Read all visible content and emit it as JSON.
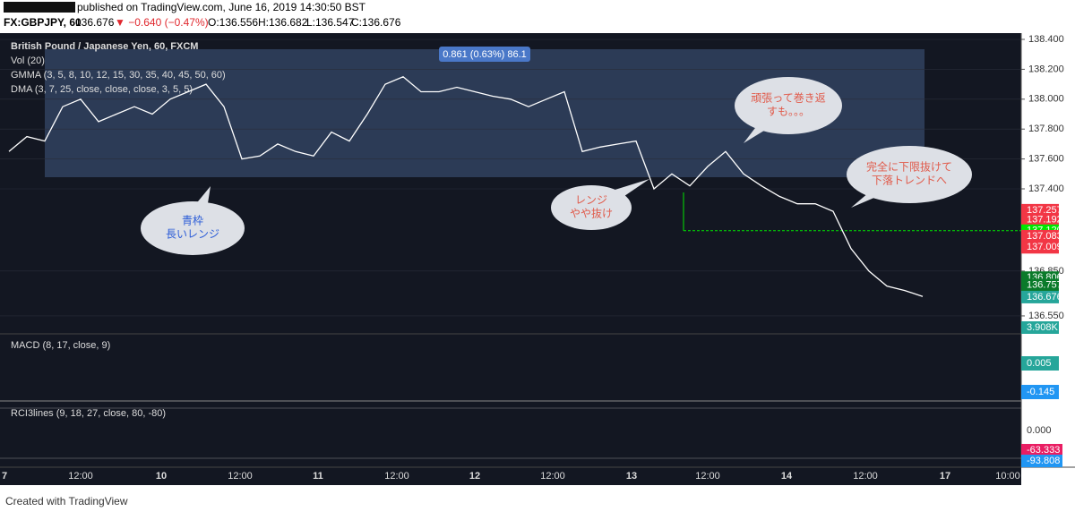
{
  "header": {
    "published": "published on TradingView.com, June 16, 2019 14:30:50 BST",
    "symbol": "FX:GBPJPY, 60",
    "last": "136.676",
    "change": "▼ −0.640 (−0.47%)",
    "open": "O:136.556",
    "high": "H:136.682",
    "low": "L:136.547",
    "close": "C:136.676"
  },
  "legend": [
    "British Pound / Japanese Yen, 60, FXCM",
    "Vol (20)",
    "GMMA (3, 5, 8, 10, 12, 15, 30, 35, 40, 45, 50, 60)",
    "DMA (3, 7, 25, close, close, close, 3, 5, 5)"
  ],
  "measure_label": "0.861 (0.63%) 86.1",
  "chart_data": {
    "type": "line",
    "color": "#ffffff",
    "categories": [
      null,
      null,
      null,
      null,
      null,
      null,
      null,
      null,
      null,
      null,
      null,
      null,
      null,
      null,
      null,
      null,
      null,
      null,
      null,
      null,
      null,
      null,
      null,
      null,
      null,
      null,
      null,
      null,
      null,
      null,
      null,
      null,
      null,
      null,
      null,
      null,
      null,
      null,
      null,
      null,
      null,
      null,
      null,
      null,
      null,
      null,
      null,
      null,
      null,
      null,
      null,
      null
    ],
    "values": [
      137.65,
      137.75,
      137.72,
      137.95,
      138.0,
      137.85,
      137.9,
      137.95,
      137.9,
      138.0,
      138.05,
      138.1,
      137.95,
      137.6,
      137.62,
      137.7,
      137.65,
      137.62,
      137.78,
      137.72,
      137.9,
      138.1,
      138.15,
      138.05,
      138.05,
      138.08,
      138.05,
      138.02,
      138.0,
      137.95,
      138.0,
      138.05,
      137.65,
      137.68,
      137.7,
      137.72,
      137.4,
      137.5,
      137.42,
      137.55,
      137.65,
      137.5,
      137.42,
      137.35,
      137.3,
      137.3,
      137.25,
      137.0,
      136.85,
      136.75,
      136.72,
      136.68
    ],
    "ylim": [
      136.43,
      138.442
    ],
    "yticks": [
      {
        "value": 138.4,
        "label": "138.400"
      },
      {
        "value": 138.2,
        "label": "138.200"
      },
      {
        "value": 138.0,
        "label": "138.000"
      },
      {
        "value": 137.8,
        "label": "137.800"
      },
      {
        "value": 137.6,
        "label": "137.600"
      },
      {
        "value": 137.4,
        "label": "137.400"
      },
      {
        "value": 136.85,
        "label": "136.850"
      },
      {
        "value": 136.55,
        "label": "136.550"
      }
    ],
    "badges": [
      {
        "value": 137.257,
        "label": "137.257",
        "color": "#f23645"
      },
      {
        "value": 137.192,
        "label": "137.192",
        "color": "#f23645"
      },
      {
        "value": 137.12,
        "label": "137.120",
        "color": "#00e600"
      },
      {
        "value": 137.083,
        "label": "137.083",
        "color": "#f23645"
      },
      {
        "value": 137.009,
        "label": "137.009",
        "color": "#f23645"
      },
      {
        "value": 136.806,
        "label": "136.806",
        "color": "#0a7a2a"
      },
      {
        "value": 136.757,
        "label": "136.757",
        "color": "#0a7a2a"
      },
      {
        "value": 136.676,
        "label": "136.676",
        "color": "#26a69a"
      }
    ],
    "level": 137.12
  },
  "volume_badge": "3.908K",
  "macd": {
    "title": "MACD (8, 17, close, 9)",
    "hist_badge": "0.005",
    "line_badge": "-0.145"
  },
  "rci": {
    "title": "RCI3lines (9, 18, 27, close, 80, -80)",
    "zero": "0.000",
    "badge1": "-63.333",
    "badge2": "-93.808"
  },
  "time_axis": [
    "7",
    "12:00",
    "10",
    "12:00",
    "11",
    "12:00",
    "12",
    "12:00",
    "13",
    "12:00",
    "14",
    "12:00",
    "17",
    "10:00"
  ],
  "annotations": [
    {
      "lines": [
        "青枠",
        "長いレンジ"
      ]
    },
    {
      "lines": [
        "レンジ",
        "やや抜け"
      ]
    },
    {
      "lines": [
        "頑張って巻き返",
        "すも。。。"
      ]
    },
    {
      "lines": [
        "完全に下限抜けて",
        "下落トレンドへ"
      ]
    }
  ],
  "footer": "Created with  TradingView"
}
